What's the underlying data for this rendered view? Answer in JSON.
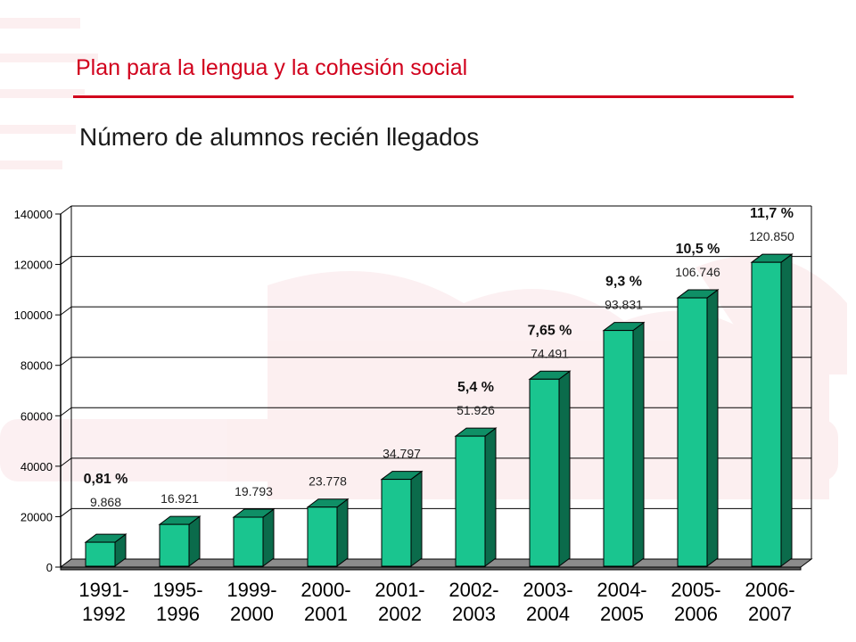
{
  "header": {
    "title": "Plan para la lengua y la cohesión social"
  },
  "chart_data": {
    "type": "bar",
    "title": "Número de alumnos recién llegados",
    "categories": [
      [
        "1991-",
        "1992"
      ],
      [
        "1995-",
        "1996"
      ],
      [
        "1999-",
        "2000"
      ],
      [
        "2000-",
        "2001"
      ],
      [
        "2001-",
        "2002"
      ],
      [
        "2002-",
        "2003"
      ],
      [
        "2003-",
        "2004"
      ],
      [
        "2004-",
        "2005"
      ],
      [
        "2005-",
        "2006"
      ],
      [
        "2006-",
        "2007"
      ]
    ],
    "values": [
      9868,
      16921,
      19793,
      23778,
      34797,
      51926,
      74491,
      93831,
      106746,
      120850
    ],
    "value_labels": [
      "9.868",
      "16.921",
      "19.793",
      "23.778",
      "34.797",
      "51.926",
      "74.491",
      "93.831",
      "106.746",
      "120.850"
    ],
    "percent_labels": [
      "0,81 %",
      "",
      "",
      "",
      "",
      "5,4 %",
      "7,65 %",
      "9,3 %",
      "10,5 %",
      "11,7 %"
    ],
    "ylim": [
      0,
      140000
    ],
    "yticks": [
      0,
      20000,
      40000,
      60000,
      80000,
      100000,
      120000,
      140000
    ],
    "ytick_labels": [
      "0",
      "20000",
      "40000",
      "60000",
      "80000",
      "100000",
      "120000",
      "140000"
    ],
    "grid": true,
    "xlabel": "",
    "ylabel": "",
    "colors": {
      "bar_front": "#1ac58f",
      "bar_side": "#0b6b4b",
      "bar_top": "#0f8f66",
      "floor": "#8c8c8c",
      "accent": "#d1001c"
    }
  }
}
